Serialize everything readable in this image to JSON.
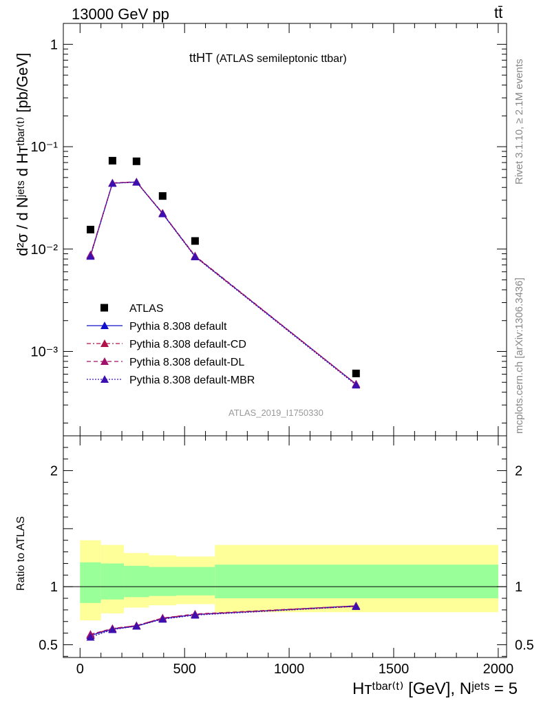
{
  "header": {
    "left": "13000 GeV pp",
    "right": "tt̄"
  },
  "side_labels": {
    "rivet": "Rivet 3.1.10, ≥ 2.1M events",
    "mcplots": "mcplots.cern.ch [arXiv:1306.3436]"
  },
  "plot_title": {
    "main": "ttHT",
    "sub": "(ATLAS semileptonic ttbar)"
  },
  "analysis_id": "ATLAS_2019_I1750330",
  "y_label_main": "d²σ / d Nʲᵉᵗˢ d Hᴛᵗᵇᵃʳ⁽ᵗ⁾ [pb/GeV]",
  "y_label_ratio": "Ratio to ATLAS",
  "x_label": "Hᴛᵗᵇᵃʳ⁽ᵗ⁾ [GeV], Nʲᵉᵗˢ = 5",
  "colors": {
    "data": "#000000",
    "default": "#1010cc",
    "cd": "#b0124a",
    "dl": "#a0126a",
    "mbr": "#3c10b0",
    "band_inner": "#99ff99",
    "band_outer": "#ffff99"
  },
  "chart_data": {
    "type": "line",
    "x_axis": {
      "range": [
        -80,
        2040
      ],
      "ticks": [
        0,
        500,
        1000,
        1500,
        2000
      ]
    },
    "main_y": {
      "log": true,
      "range": [
        0.00015,
        1.6
      ],
      "tick_labels": [
        "1",
        "10⁻¹",
        "10⁻²",
        "10⁻³"
      ],
      "tick_values": [
        1,
        0.1,
        0.01,
        0.001
      ]
    },
    "ratio_y": {
      "range": [
        0.39,
        2.3
      ],
      "ticks": [
        0.5,
        1,
        2
      ],
      "tick_labels": [
        "0.5",
        "1",
        "2"
      ]
    },
    "x": [
      50,
      155,
      270,
      395,
      550,
      1320
    ],
    "series": [
      {
        "name": "ATLAS",
        "key": "data",
        "marker": "square",
        "values": [
          0.0155,
          0.073,
          0.072,
          0.033,
          0.012,
          0.00061
        ]
      },
      {
        "name": "Pythia 8.308 default",
        "key": "default",
        "style": "solid",
        "values": [
          0.0086,
          0.044,
          0.0452,
          0.0222,
          0.0085,
          0.00048
        ],
        "ratio": [
          0.58,
          0.635,
          0.66,
          0.725,
          0.76,
          0.835
        ]
      },
      {
        "name": "Pythia 8.308 default-CD",
        "key": "cd",
        "style": "dashdot",
        "values": [
          0.0087,
          0.0441,
          0.0452,
          0.0224,
          0.0085,
          0.00048
        ],
        "ratio": [
          0.585,
          0.64,
          0.665,
          0.73,
          0.762,
          0.83
        ]
      },
      {
        "name": "Pythia 8.308 default-DL",
        "key": "dl",
        "style": "dashed",
        "values": [
          0.0088,
          0.0443,
          0.0454,
          0.0224,
          0.0086,
          0.00048
        ],
        "ratio": [
          0.59,
          0.64,
          0.665,
          0.73,
          0.765,
          0.835
        ]
      },
      {
        "name": "Pythia 8.308 default-MBR",
        "key": "mbr",
        "style": "dotted",
        "values": [
          0.0085,
          0.0439,
          0.045,
          0.0221,
          0.0084,
          0.00047
        ],
        "ratio": [
          0.565,
          0.63,
          0.66,
          0.72,
          0.755,
          0.83
        ]
      }
    ],
    "ratio_band": {
      "edges": [
        0,
        100,
        210,
        330,
        460,
        645,
        2000
      ],
      "inner_lo": [
        0.86,
        0.89,
        0.91,
        0.92,
        0.925,
        0.9
      ],
      "inner_hi": [
        1.21,
        1.2,
        1.18,
        1.17,
        1.17,
        1.19
      ],
      "outer_lo": [
        0.71,
        0.77,
        0.82,
        0.84,
        0.85,
        0.78
      ],
      "outer_hi": [
        1.4,
        1.36,
        1.29,
        1.27,
        1.26,
        1.36
      ]
    },
    "legend_position": "lower-left"
  }
}
